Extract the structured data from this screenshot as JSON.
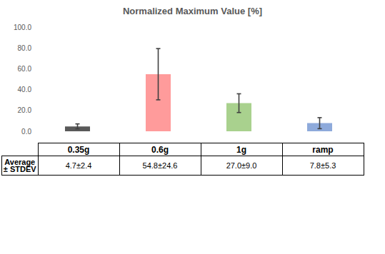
{
  "chart_data": {
    "type": "bar",
    "title": "Normalized Maximum Value [%]",
    "categories": [
      "0.35g",
      "0.6g",
      "1g",
      "ramp"
    ],
    "values": [
      4.7,
      54.8,
      27.0,
      7.8
    ],
    "errors": [
      2.4,
      24.6,
      9.0,
      5.3
    ],
    "colors": [
      "#595959",
      "#ff9b9b",
      "#a9d18e",
      "#8eaadb"
    ],
    "ylim": [
      0,
      100
    ],
    "yticks": [
      {
        "value": 0,
        "label": "0.0"
      },
      {
        "value": 20,
        "label": "20.0"
      },
      {
        "value": 40,
        "label": "40.0"
      },
      {
        "value": 60,
        "label": "60.0"
      },
      {
        "value": 80,
        "label": "80.0"
      },
      {
        "value": 100,
        "label": "100.0"
      }
    ],
    "grid": false,
    "tick_labels": "y"
  },
  "table": {
    "row_label": [
      "Average",
      "± STDEV"
    ],
    "cells": [
      "4.7±2.4",
      "54.8±24.6",
      "27.0±9.0",
      "7.8±5.3"
    ]
  }
}
